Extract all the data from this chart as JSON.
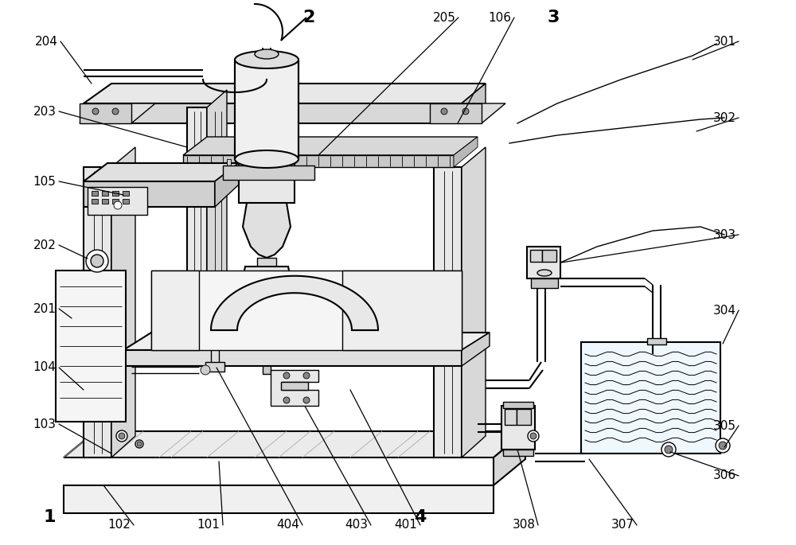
{
  "bg_color": "#ffffff",
  "figsize": [
    10.0,
    6.85
  ],
  "dpi": 100,
  "labels_bold": [
    [
      "1",
      62,
      650
    ],
    [
      "2",
      388,
      22
    ],
    [
      "3",
      695,
      22
    ],
    [
      "4",
      528,
      650
    ]
  ],
  "labels_normal": [
    [
      "204",
      58,
      52
    ],
    [
      "203",
      56,
      140
    ],
    [
      "105",
      56,
      228
    ],
    [
      "202",
      56,
      308
    ],
    [
      "201",
      56,
      388
    ],
    [
      "104",
      56,
      462
    ],
    [
      "103",
      56,
      533
    ],
    [
      "102",
      150,
      660
    ],
    [
      "101",
      262,
      660
    ],
    [
      "404",
      362,
      660
    ],
    [
      "403",
      448,
      660
    ],
    [
      "401",
      510,
      660
    ],
    [
      "205",
      558,
      22
    ],
    [
      "106",
      628,
      22
    ],
    [
      "301",
      910,
      52
    ],
    [
      "302",
      910,
      148
    ],
    [
      "303",
      910,
      295
    ],
    [
      "304",
      910,
      390
    ],
    [
      "305",
      910,
      535
    ],
    [
      "306",
      910,
      598
    ],
    [
      "307",
      782,
      660
    ],
    [
      "308",
      658,
      660
    ]
  ]
}
